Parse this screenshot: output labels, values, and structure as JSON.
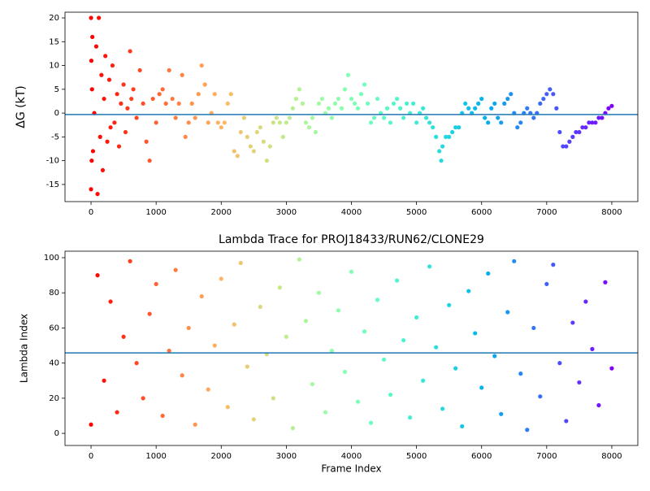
{
  "chart_data": [
    {
      "type": "scatter",
      "ylabel": "ΔG (kT)",
      "colormap": "rainbow_r",
      "hline": -0.3,
      "hline_color": "#1f77b4",
      "xlim": [
        -400,
        8400
      ],
      "ylim": [
        -18.6,
        21.2
      ],
      "xticks": [
        0,
        1000,
        2000,
        3000,
        4000,
        5000,
        6000,
        7000,
        8000
      ],
      "yticks": [
        -15,
        -10,
        -5,
        0,
        5,
        10,
        15,
        20
      ],
      "x": [
        0,
        0,
        5,
        10,
        15,
        20,
        30,
        50,
        80,
        100,
        120,
        140,
        160,
        180,
        200,
        220,
        250,
        280,
        300,
        330,
        360,
        400,
        430,
        460,
        500,
        530,
        560,
        600,
        620,
        650,
        700,
        750,
        800,
        850,
        900,
        950,
        1000,
        1050,
        1100,
        1150,
        1200,
        1250,
        1300,
        1350,
        1400,
        1450,
        1500,
        1550,
        1600,
        1650,
        1700,
        1750,
        1800,
        1850,
        1900,
        1950,
        2000,
        2050,
        2100,
        2150,
        2200,
        2250,
        2300,
        2350,
        2400,
        2450,
        2500,
        2550,
        2600,
        2650,
        2700,
        2750,
        2800,
        2850,
        2900,
        2950,
        3000,
        3050,
        3100,
        3150,
        3200,
        3250,
        3300,
        3350,
        3400,
        3450,
        3500,
        3550,
        3600,
        3650,
        3700,
        3750,
        3800,
        3850,
        3900,
        3950,
        4000,
        4050,
        4100,
        4150,
        4200,
        4250,
        4300,
        4350,
        4400,
        4450,
        4500,
        4550,
        4600,
        4650,
        4700,
        4750,
        4800,
        4850,
        4900,
        4950,
        5000,
        5050,
        5100,
        5150,
        5200,
        5250,
        5300,
        5350,
        5380,
        5400,
        5450,
        5500,
        5550,
        5600,
        5650,
        5700,
        5750,
        5800,
        5850,
        5900,
        5950,
        6000,
        6050,
        6100,
        6150,
        6200,
        6250,
        6300,
        6350,
        6400,
        6450,
        6500,
        6550,
        6600,
        6650,
        6700,
        6750,
        6800,
        6850,
        6900,
        6950,
        7000,
        7050,
        7100,
        7150,
        7200,
        7250,
        7300,
        7350,
        7400,
        7450,
        7500,
        7550,
        7600,
        7650,
        7700,
        7750,
        7800,
        7850,
        7900,
        7950,
        8000
      ],
      "values": [
        20,
        -16,
        11,
        -10,
        5,
        16,
        -8,
        0,
        14,
        -17,
        20,
        -5,
        8,
        -12,
        3,
        12,
        -6,
        7,
        -3,
        10,
        -2,
        4,
        -7,
        2,
        6,
        -4,
        1,
        13,
        3,
        5,
        -1,
        9,
        2,
        -6,
        -10,
        3,
        -2,
        4,
        5,
        2,
        9,
        3,
        -1,
        2,
        8,
        -5,
        -2,
        2,
        -1,
        4,
        10,
        6,
        -2,
        0,
        4,
        -2,
        -3,
        -2,
        2,
        4,
        -8,
        -9,
        -4,
        -1,
        -5,
        -7,
        -8,
        -4,
        -3,
        -6,
        -10,
        -7,
        -2,
        -1,
        -2,
        -5,
        -2,
        -1,
        1,
        3,
        5,
        2,
        -2,
        -3,
        -1,
        -4,
        2,
        3,
        0,
        1,
        -1,
        2,
        3,
        1,
        5,
        8,
        3,
        2,
        1,
        4,
        6,
        2,
        -2,
        -1,
        3,
        0,
        -1,
        1,
        -2,
        2,
        3,
        1,
        -1,
        2,
        0,
        2,
        -2,
        0,
        1,
        -1,
        -2,
        -3,
        -5,
        -8,
        -10,
        -7,
        -5,
        -5,
        -4,
        -3,
        -3,
        0,
        2,
        1,
        0,
        1,
        2,
        3,
        -1,
        -2,
        1,
        2,
        -1,
        -2,
        2,
        3,
        4,
        0,
        -3,
        -2,
        0,
        1,
        0,
        -1,
        0,
        2,
        3,
        4,
        5,
        4,
        1,
        -4,
        -7,
        -7,
        -6,
        -5,
        -4,
        -4,
        -3,
        -3,
        -2,
        -2,
        -2,
        -1,
        -1,
        0,
        1,
        1.5
      ]
    },
    {
      "type": "scatter",
      "title": "Lambda Trace for PROJ18433/RUN62/CLONE29",
      "xlabel": "Frame Index",
      "ylabel": "Lambda Index",
      "colormap": "rainbow_r",
      "hline": 45.8,
      "hline_color": "#1f77b4",
      "xlim": [
        -400,
        8400
      ],
      "ylim": [
        -6.9,
        103.7
      ],
      "xticks": [
        0,
        1000,
        2000,
        3000,
        4000,
        5000,
        6000,
        7000,
        8000
      ],
      "yticks": [
        0,
        20,
        40,
        60,
        80,
        100
      ],
      "x": [
        0,
        100,
        200,
        300,
        400,
        500,
        600,
        700,
        800,
        900,
        1000,
        1100,
        1200,
        1300,
        1400,
        1500,
        1600,
        1700,
        1800,
        1900,
        2000,
        2100,
        2200,
        2300,
        2400,
        2500,
        2600,
        2700,
        2800,
        2900,
        3000,
        3100,
        3200,
        3300,
        3400,
        3500,
        3600,
        3700,
        3800,
        3900,
        4000,
        4100,
        4200,
        4300,
        4400,
        4500,
        4600,
        4700,
        4800,
        4900,
        5000,
        5100,
        5200,
        5300,
        5400,
        5500,
        5600,
        5700,
        5800,
        5900,
        6000,
        6100,
        6200,
        6300,
        6400,
        6500,
        6600,
        6700,
        6800,
        6900,
        7000,
        7100,
        7200,
        7300,
        7400,
        7500,
        7600,
        7700,
        7800,
        7900,
        8000
      ],
      "values": [
        5,
        90,
        30,
        75,
        12,
        55,
        98,
        40,
        20,
        68,
        85,
        10,
        47,
        93,
        33,
        60,
        5,
        78,
        25,
        50,
        88,
        15,
        62,
        97,
        38,
        8,
        72,
        45,
        20,
        83,
        55,
        3,
        99,
        64,
        28,
        80,
        12,
        47,
        70,
        35,
        92,
        18,
        58,
        6,
        76,
        42,
        22,
        87,
        53,
        9,
        66,
        30,
        95,
        49,
        14,
        73,
        37,
        4,
        81,
        57,
        26,
        91,
        44,
        11,
        69,
        98,
        34,
        2,
        60,
        21,
        85,
        96,
        40,
        7,
        63,
        29,
        75,
        48,
        16,
        86,
        37
      ]
    }
  ]
}
